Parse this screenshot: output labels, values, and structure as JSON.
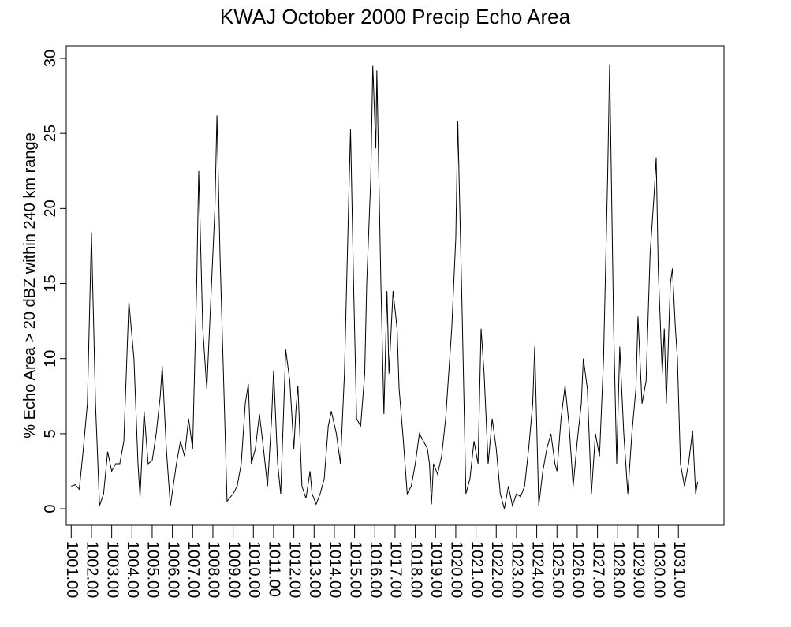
{
  "chart_data": {
    "type": "line",
    "title": "KWAJ October 2000 Precip Echo Area",
    "ylabel": "% Echo Area > 20 dBZ within 240 km range",
    "x": [
      1.0,
      1.2,
      1.4,
      1.6,
      1.8,
      2.0,
      2.2,
      2.4,
      2.6,
      2.8,
      3.0,
      3.2,
      3.4,
      3.6,
      3.85,
      4.1,
      4.3,
      4.4,
      4.6,
      4.8,
      5.0,
      5.2,
      5.4,
      5.5,
      5.7,
      5.9,
      6.2,
      6.4,
      6.6,
      6.8,
      7.0,
      7.2,
      7.3,
      7.5,
      7.7,
      7.9,
      8.1,
      8.2,
      8.35,
      8.5,
      8.7,
      9.0,
      9.2,
      9.4,
      9.6,
      9.75,
      9.9,
      10.1,
      10.3,
      10.5,
      10.7,
      10.9,
      11.0,
      11.2,
      11.35,
      11.6,
      11.8,
      12.0,
      12.1,
      12.2,
      12.4,
      12.6,
      12.8,
      12.9,
      13.1,
      13.3,
      13.5,
      13.7,
      13.85,
      14.1,
      14.3,
      14.5,
      14.7,
      14.8,
      14.95,
      15.1,
      15.3,
      15.5,
      15.6,
      15.8,
      15.9,
      16.05,
      16.1,
      16.3,
      16.45,
      16.6,
      16.7,
      16.9,
      17.1,
      17.2,
      17.4,
      17.6,
      17.8,
      18.0,
      18.2,
      18.4,
      18.6,
      18.7,
      18.8,
      18.9,
      19.1,
      19.3,
      19.5,
      19.8,
      20.0,
      20.1,
      20.3,
      20.5,
      20.7,
      20.9,
      21.1,
      21.25,
      21.4,
      21.6,
      21.8,
      22.0,
      22.2,
      22.4,
      22.6,
      22.8,
      23.0,
      23.2,
      23.4,
      23.6,
      23.8,
      23.9,
      24.1,
      24.3,
      24.5,
      24.7,
      24.9,
      25.0,
      25.2,
      25.4,
      25.6,
      25.8,
      26.0,
      26.2,
      26.3,
      26.5,
      26.7,
      26.9,
      27.1,
      27.3,
      27.5,
      27.6,
      27.8,
      27.95,
      28.1,
      28.3,
      28.5,
      28.7,
      28.9,
      29.0,
      29.2,
      29.4,
      29.6,
      29.8,
      29.9,
      30.0,
      30.2,
      30.3,
      30.4,
      30.6,
      30.7,
      30.85,
      30.95,
      31.1,
      31.3,
      31.5,
      31.7,
      31.85,
      31.95
    ],
    "series": [
      {
        "name": "Echo Area",
        "color": "#000000",
        "values": [
          1.5,
          1.6,
          1.3,
          4,
          7,
          18.4,
          7,
          0.2,
          1,
          3.8,
          2.5,
          3,
          3,
          4.5,
          13.8,
          10,
          3,
          0.8,
          6.5,
          3,
          3.2,
          5,
          7.5,
          9.5,
          4,
          0.2,
          3,
          4.5,
          3.5,
          6,
          4,
          15,
          22.5,
          12,
          8,
          14,
          20,
          26.2,
          17,
          10,
          0.5,
          1,
          1.5,
          3,
          7,
          8.3,
          3,
          4,
          6.3,
          4,
          1.5,
          6,
          9.2,
          3,
          1,
          10.6,
          8.5,
          4,
          6.5,
          8.2,
          1.5,
          0.7,
          2.5,
          1,
          0.3,
          1,
          2,
          5.5,
          6.5,
          5,
          3,
          9,
          20,
          25.3,
          15,
          6,
          5.5,
          9,
          15,
          22,
          29.5,
          24,
          29.2,
          15,
          6.3,
          14.5,
          9,
          14.5,
          12,
          8,
          4.7,
          1,
          1.5,
          3,
          5,
          4.5,
          4,
          3,
          0.3,
          3,
          2.3,
          3.5,
          6,
          12,
          18,
          25.8,
          14,
          1,
          2,
          4.5,
          3,
          12,
          9,
          3,
          6,
          4,
          1,
          0,
          1.5,
          0.2,
          1,
          0.8,
          1.5,
          4,
          7,
          10.8,
          0.2,
          2.5,
          4,
          5,
          3,
          2.5,
          6,
          8.2,
          5.5,
          1.5,
          4.5,
          7,
          10,
          8,
          1,
          5,
          3.5,
          10,
          22,
          29.6,
          12,
          3,
          10.8,
          5,
          1,
          5,
          8,
          12.8,
          7,
          8.5,
          17,
          21,
          23.4,
          16,
          9,
          12,
          7,
          15,
          16,
          12,
          10,
          3,
          1.5,
          3,
          5.2,
          1,
          1.8
        ]
      }
    ],
    "xlim": [
      0.755,
      33.25
    ],
    "ylim": [
      -1.1,
      30.84
    ],
    "yticks": [
      0,
      5,
      10,
      15,
      20,
      25,
      30
    ],
    "xticks": [
      {
        "value": 1,
        "label": "1001.00"
      },
      {
        "value": 2,
        "label": "1002.00"
      },
      {
        "value": 3,
        "label": "1003.00"
      },
      {
        "value": 4,
        "label": "1004.00"
      },
      {
        "value": 5,
        "label": "1005.00"
      },
      {
        "value": 6,
        "label": "1006.00"
      },
      {
        "value": 7,
        "label": "1007.00"
      },
      {
        "value": 8,
        "label": "1008.00"
      },
      {
        "value": 9,
        "label": "1009.00"
      },
      {
        "value": 10,
        "label": "1010.00"
      },
      {
        "value": 11,
        "label": "1011.00"
      },
      {
        "value": 12,
        "label": "1012.00"
      },
      {
        "value": 13,
        "label": "1013.00"
      },
      {
        "value": 14,
        "label": "1014.00"
      },
      {
        "value": 15,
        "label": "1015.00"
      },
      {
        "value": 16,
        "label": "1016.00"
      },
      {
        "value": 17,
        "label": "1017.00"
      },
      {
        "value": 18,
        "label": "1018.00"
      },
      {
        "value": 19,
        "label": "1019.00"
      },
      {
        "value": 20,
        "label": "1020.00"
      },
      {
        "value": 21,
        "label": "1021.00"
      },
      {
        "value": 22,
        "label": "1022.00"
      },
      {
        "value": 23,
        "label": "1023.00"
      },
      {
        "value": 24,
        "label": "1024.00"
      },
      {
        "value": 25,
        "label": "1025.00"
      },
      {
        "value": 26,
        "label": "1026.00"
      },
      {
        "value": 27,
        "label": "1027.00"
      },
      {
        "value": 28,
        "label": "1028.00"
      },
      {
        "value": 29,
        "label": "1029.00"
      },
      {
        "value": 30,
        "label": "1030.00"
      },
      {
        "value": 31,
        "label": "1031.00"
      }
    ]
  }
}
